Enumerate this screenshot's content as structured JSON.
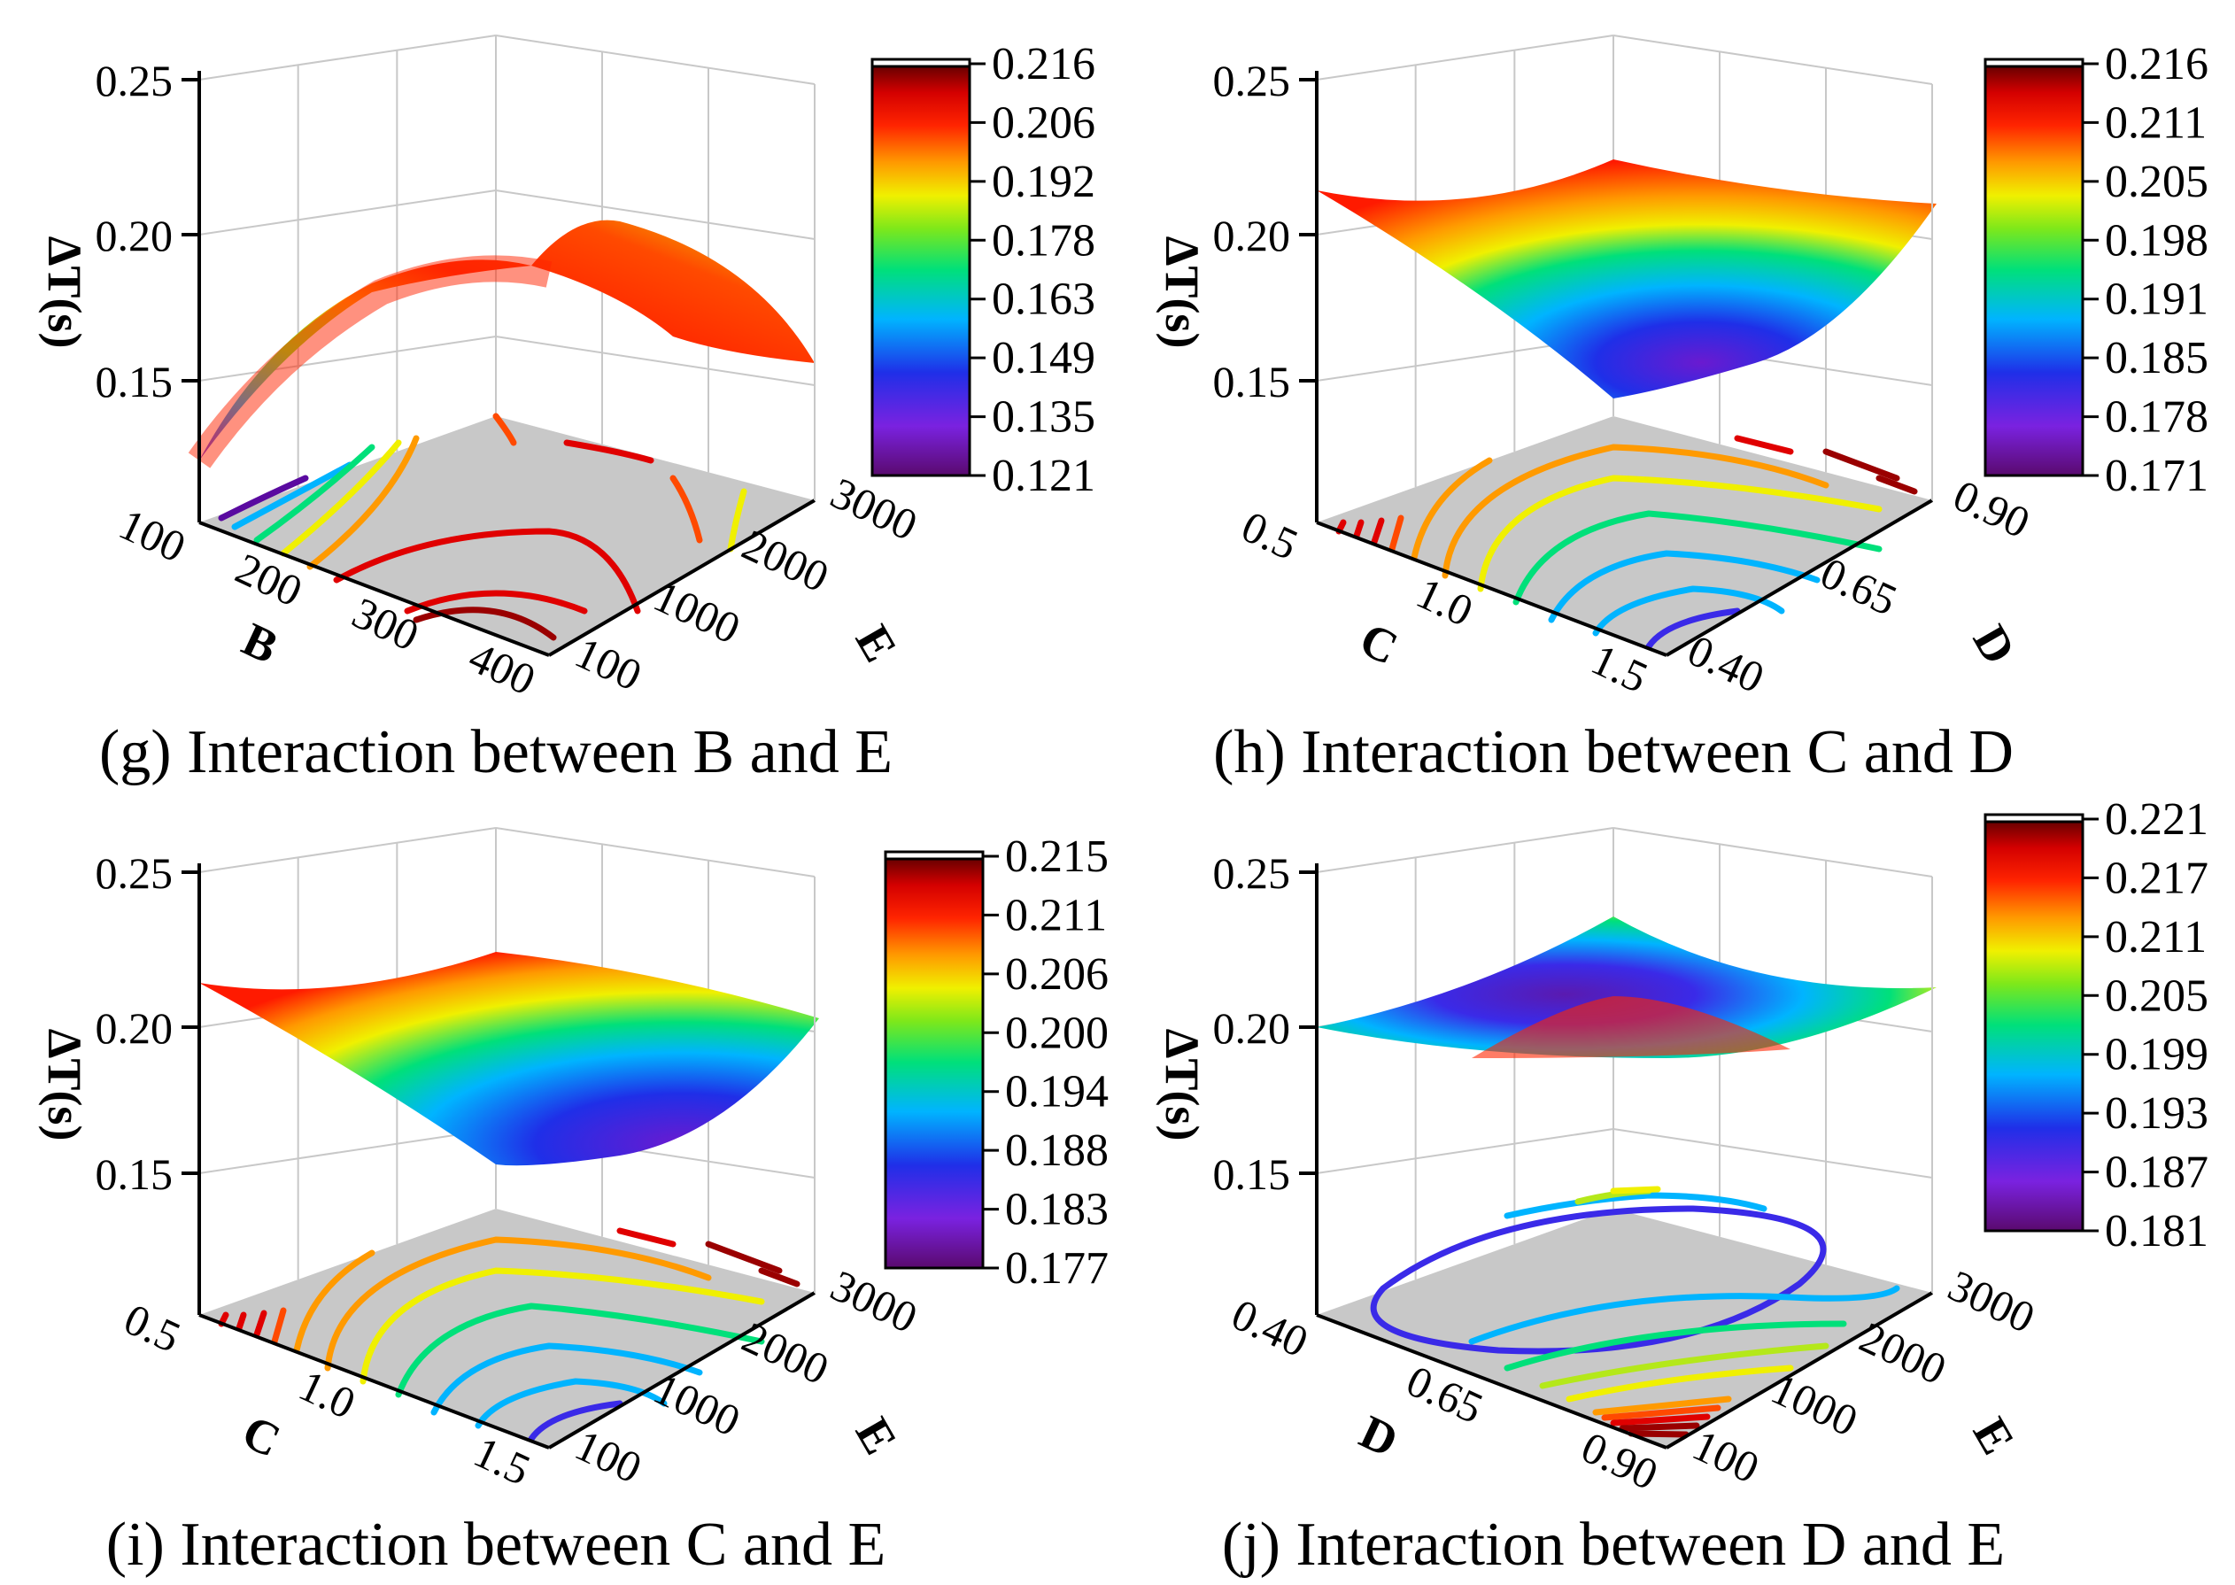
{
  "chart_data": [
    {
      "id": "g",
      "type": "surface3d",
      "title": "(g) Interaction between B and E",
      "zlabel": "ΔT(s)",
      "xlabel": "B",
      "ylabel": "E",
      "zticks": [
        "0.25",
        "0.20",
        "0.15"
      ],
      "xticks": [
        "100",
        "200",
        "300",
        "400"
      ],
      "yticks": [
        "100",
        "1000",
        "2000",
        "3000"
      ],
      "colorbar_ticks": [
        "0.216",
        "0.206",
        "0.192",
        "0.178",
        "0.163",
        "0.149",
        "0.135",
        "0.121"
      ],
      "zrange": [
        0.121,
        0.216
      ],
      "shape": "dome"
    },
    {
      "id": "h",
      "type": "surface3d",
      "title": "(h) Interaction between C and D",
      "zlabel": "ΔT(s)",
      "xlabel": "C",
      "ylabel": "D",
      "zticks": [
        "0.25",
        "0.20",
        "0.15"
      ],
      "xticks": [
        "0.5",
        "1.0",
        "1.5"
      ],
      "yticks": [
        "0.40",
        "0.65",
        "0.90"
      ],
      "colorbar_ticks": [
        "0.216",
        "0.211",
        "0.205",
        "0.198",
        "0.191",
        "0.185",
        "0.178",
        "0.171"
      ],
      "zrange": [
        0.171,
        0.216
      ],
      "shape": "bowl"
    },
    {
      "id": "i",
      "type": "surface3d",
      "title": "(i) Interaction between C and E",
      "zlabel": "ΔT(s)",
      "xlabel": "C",
      "ylabel": "E",
      "zticks": [
        "0.25",
        "0.20",
        "0.15"
      ],
      "xticks": [
        "0.5",
        "1.0",
        "1.5"
      ],
      "yticks": [
        "100",
        "1000",
        "2000",
        "3000"
      ],
      "colorbar_ticks": [
        "0.215",
        "0.211",
        "0.206",
        "0.200",
        "0.194",
        "0.188",
        "0.183",
        "0.177"
      ],
      "zrange": [
        0.177,
        0.215
      ],
      "shape": "bowl"
    },
    {
      "id": "j",
      "type": "surface3d",
      "title": "(j) Interaction between D and E",
      "zlabel": "ΔT(s)",
      "xlabel": "D",
      "ylabel": "E",
      "zticks": [
        "0.25",
        "0.20",
        "0.15"
      ],
      "xticks": [
        "0.40",
        "0.65",
        "0.90"
      ],
      "yticks": [
        "100",
        "1000",
        "2000",
        "3000"
      ],
      "colorbar_ticks": [
        "0.221",
        "0.217",
        "0.211",
        "0.205",
        "0.199",
        "0.193",
        "0.187",
        "0.181"
      ],
      "zrange": [
        0.181,
        0.221
      ],
      "shape": "saddle"
    }
  ]
}
